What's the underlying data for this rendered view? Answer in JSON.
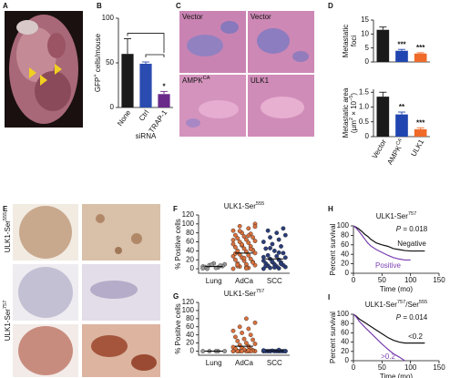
{
  "chart_data": [
    {
      "panel": "B",
      "type": "bar",
      "ylabel": [
        {
          "text": "GFP"
        },
        {
          "text": "+",
          "sup": true
        },
        {
          "text": " cells/mouse"
        }
      ],
      "xlabel": "siRNA",
      "categories": [
        "None",
        "Ctrl",
        "TRAP-1"
      ],
      "values": [
        60,
        49,
        15
      ],
      "errors": [
        17,
        2,
        3
      ],
      "colors": [
        "#1a1a1a",
        "#2a4bb0",
        "#6a2a8a"
      ],
      "ylim": [
        0,
        100
      ],
      "yticks": [
        0,
        50,
        100
      ],
      "annotations": [
        "*"
      ]
    },
    {
      "panel": "D",
      "type": "bar",
      "ylabel": "Metastatic",
      "ylabel_line2": "foci",
      "values": [
        11.5,
        4,
        3
      ],
      "errors": [
        1,
        0.5,
        0.3
      ],
      "colors": [
        "#1a1a1a",
        "#2045b0",
        "#f06a2a"
      ],
      "ylim": [
        0,
        15
      ],
      "yticks": [
        0,
        5,
        10,
        15
      ],
      "annotations": [
        "***",
        "***"
      ]
    },
    {
      "type": "bar",
      "ylabel": "Metastatic area",
      "ylabel_line2": [
        {
          "text": "(µm"
        },
        {
          "text": "2",
          "sup": true
        },
        {
          "text": " × 10"
        },
        {
          "text": "−5",
          "sup": true
        },
        {
          "text": ")"
        }
      ],
      "categories": [
        "Vector",
        [
          {
            "text": "AMPK"
          },
          {
            "text": "CA",
            "sup": true
          }
        ],
        "ULK1"
      ],
      "values": [
        1.35,
        0.75,
        0.25
      ],
      "errors": [
        0.15,
        0.08,
        0.05
      ],
      "colors": [
        "#1a1a1a",
        "#2045b0",
        "#f06a2a"
      ],
      "ylim": [
        0,
        1.6
      ],
      "yticks": [
        0,
        0.5,
        {
          "value": 1,
          "label": "1.0"
        },
        1.5
      ],
      "annotations": [
        "**",
        "***"
      ]
    },
    {
      "panel": "F",
      "type": "strip",
      "title": [
        {
          "text": "ULK1-Ser"
        },
        {
          "text": "555",
          "sup": true
        }
      ],
      "ylabel": "% Positive cells",
      "categories": [
        "Lung",
        "AdCa",
        "SCC"
      ],
      "colors": [
        "#9a9a9a",
        "#d9703c",
        "#2b3d7a"
      ],
      "values": [
        [
          5,
          3,
          8,
          10,
          2,
          0,
          6,
          12,
          4,
          7,
          9,
          1
        ],
        [
          0,
          2,
          5,
          8,
          10,
          12,
          15,
          18,
          20,
          22,
          25,
          28,
          30,
          32,
          35,
          38,
          40,
          42,
          45,
          48,
          50,
          52,
          55,
          58,
          60,
          62,
          65,
          68,
          70,
          72,
          75,
          78,
          80,
          85,
          90,
          95,
          100,
          3,
          6,
          14,
          24,
          34,
          44,
          54,
          64,
          74,
          84,
          94,
          1,
          9
        ],
        [
          0,
          1,
          2,
          4,
          5,
          7,
          8,
          10,
          12,
          14,
          15,
          18,
          20,
          22,
          25,
          28,
          30,
          35,
          40,
          45,
          50,
          55,
          60,
          65,
          70,
          75,
          80,
          85,
          90,
          3,
          6,
          11,
          16,
          26,
          36,
          46
        ]
      ],
      "means": [
        5,
        35,
        22
      ],
      "ylim": [
        -10,
        120
      ],
      "yticks": [
        0,
        20,
        40,
        60,
        80,
        100,
        120
      ]
    },
    {
      "panel": "G",
      "type": "strip",
      "title": [
        {
          "text": "ULK1-Ser"
        },
        {
          "text": "757",
          "sup": true
        }
      ],
      "ylabel": "% Positive cells",
      "categories": [
        "Lung",
        "AdCa",
        "SCC"
      ],
      "colors": [
        "#9a9a9a",
        "#d9703c",
        "#2b3d7a"
      ],
      "values": [
        [
          0,
          0,
          0,
          0,
          0
        ],
        [
          0,
          0,
          0,
          0,
          0,
          0,
          2,
          3,
          5,
          5,
          8,
          10,
          12,
          15,
          18,
          20,
          25,
          28,
          30,
          35,
          40,
          45,
          50,
          55,
          60,
          70,
          80,
          0,
          1,
          4,
          6,
          0,
          0,
          0,
          2
        ],
        [
          0,
          0,
          0,
          0,
          0,
          0,
          0,
          0,
          0,
          0,
          1,
          2,
          3,
          0,
          0
        ]
      ],
      "means": [
        0,
        12,
        1
      ],
      "ylim": [
        -10,
        120
      ],
      "yticks": [
        0,
        20,
        40,
        60,
        80,
        100,
        120
      ]
    },
    {
      "panel": "H",
      "type": "line",
      "title": [
        {
          "text": "ULK1-Ser"
        },
        {
          "text": "757",
          "sup": true
        }
      ],
      "annotation": [
        {
          "text": "P",
          "italic": true
        },
        {
          "text": " = 0.018"
        }
      ],
      "xlabel": "Time (mo)",
      "ylabel": "Percent survival",
      "xlim": [
        0,
        150
      ],
      "xticks": [
        0,
        50,
        100,
        150
      ],
      "ylim": [
        0,
        100
      ],
      "yticks": [
        0,
        20,
        40,
        60,
        80,
        100
      ],
      "series": [
        {
          "name": "Negative",
          "color": "#111111",
          "x": [
            0,
            5,
            10,
            15,
            20,
            25,
            30,
            35,
            40,
            50,
            60,
            70,
            80,
            90,
            100,
            110,
            125
          ],
          "values": [
            100,
            97,
            93,
            88,
            82,
            78,
            72,
            68,
            64,
            60,
            57,
            52,
            50,
            48,
            47,
            47,
            47
          ]
        },
        {
          "name": "Positive",
          "color": "#7a3fb0",
          "x": [
            0,
            5,
            10,
            15,
            20,
            25,
            30,
            40,
            50,
            60,
            70,
            80,
            90,
            100
          ],
          "values": [
            100,
            95,
            88,
            80,
            72,
            64,
            58,
            50,
            44,
            38,
            33,
            30,
            28,
            28
          ]
        }
      ]
    },
    {
      "panel": "I",
      "type": "line",
      "title": [
        {
          "text": "ULK1-Ser"
        },
        {
          "text": "757",
          "sup": true
        },
        {
          "text": "/Ser"
        },
        {
          "text": "555",
          "sup": true
        }
      ],
      "annotation": [
        {
          "text": "P",
          "italic": true
        },
        {
          "text": " = 0.014"
        }
      ],
      "xlabel": "Time (mo)",
      "ylabel": "Percent survival",
      "xlim": [
        0,
        150
      ],
      "xticks": [
        0,
        50,
        100,
        150
      ],
      "ylim": [
        0,
        100
      ],
      "yticks": [
        0,
        20,
        40,
        60,
        80,
        100
      ],
      "series": [
        {
          "name": "<0.2",
          "color": "#111111",
          "x": [
            0,
            5,
            10,
            20,
            30,
            40,
            50,
            60,
            70,
            80,
            90,
            100,
            110,
            125
          ],
          "values": [
            100,
            96,
            90,
            82,
            74,
            66,
            58,
            50,
            44,
            40,
            38,
            38,
            38,
            38
          ]
        },
        {
          "name": ">0.2",
          "color": "#7a3fb0",
          "x": [
            0,
            5,
            10,
            20,
            30,
            40,
            50,
            60,
            70,
            80,
            90
          ],
          "values": [
            100,
            94,
            85,
            72,
            60,
            48,
            36,
            25,
            15,
            8,
            0
          ]
        }
      ]
    }
  ],
  "images": [
    {
      "panel": "A"
    },
    {
      "panel": "C",
      "labels": [
        "Vector",
        "Vector",
        [
          {
            "text": "AMPK"
          },
          {
            "text": "CA",
            "sup": true
          }
        ],
        "ULK1"
      ]
    },
    {
      "panel": "E",
      "row_labels": [
        [
          {
            "text": "ULK1-Ser"
          },
          {
            "text": "555",
            "sup": true
          }
        ],
        [
          {
            "text": "ULK1-Ser"
          },
          {
            "text": "757",
            "sup": true
          }
        ]
      ]
    }
  ]
}
